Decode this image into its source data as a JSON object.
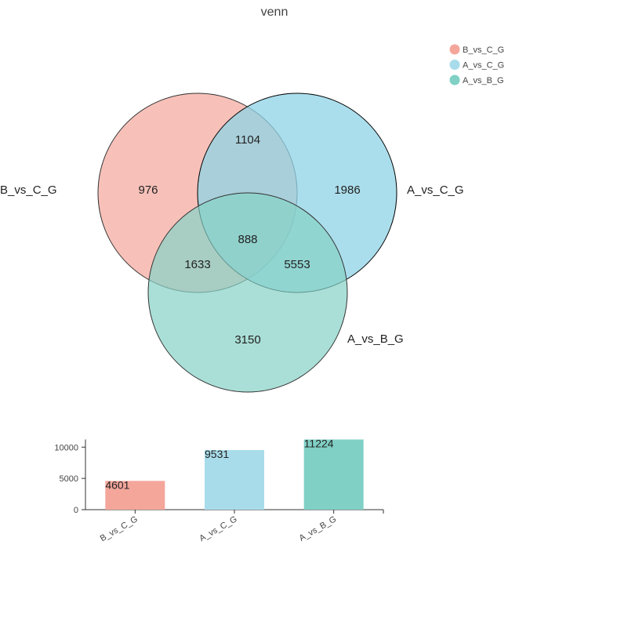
{
  "chart_data": [
    {
      "type": "venn",
      "title": "venn",
      "sets": [
        {
          "name": "B_vs_C_G",
          "color": "#f4a69b"
        },
        {
          "name": "A_vs_C_G",
          "color": "#a8dcea"
        },
        {
          "name": "A_vs_B_G",
          "color": "#80d0c5"
        }
      ],
      "regions": [
        {
          "sets": [
            "B_vs_C_G"
          ],
          "count": "976"
        },
        {
          "sets": [
            "A_vs_C_G"
          ],
          "count": "1986"
        },
        {
          "sets": [
            "A_vs_B_G"
          ],
          "count": "3150"
        },
        {
          "sets": [
            "B_vs_C_G",
            "A_vs_C_G"
          ],
          "count": "1104"
        },
        {
          "sets": [
            "B_vs_C_G",
            "A_vs_B_G"
          ],
          "count": "1633"
        },
        {
          "sets": [
            "A_vs_C_G",
            "A_vs_B_G"
          ],
          "count": "5553"
        },
        {
          "sets": [
            "B_vs_C_G",
            "A_vs_C_G",
            "A_vs_B_G"
          ],
          "count": "888"
        }
      ],
      "legend": {
        "position": "top-right",
        "entries": [
          "B_vs_C_G",
          "A_vs_C_G",
          "A_vs_B_G"
        ]
      }
    },
    {
      "type": "bar",
      "categories": [
        "B_vs_C_G",
        "A_vs_C_G",
        "A_vs_B_G"
      ],
      "values": [
        4601,
        9531,
        11224
      ],
      "value_labels": [
        "4601",
        "9531",
        "11224"
      ],
      "colors": [
        "#f4a69b",
        "#a8dcea",
        "#80d0c5"
      ],
      "yticks": [
        "0",
        "5000",
        "10000"
      ],
      "ylim": [
        0,
        11224
      ],
      "grid": false
    }
  ]
}
